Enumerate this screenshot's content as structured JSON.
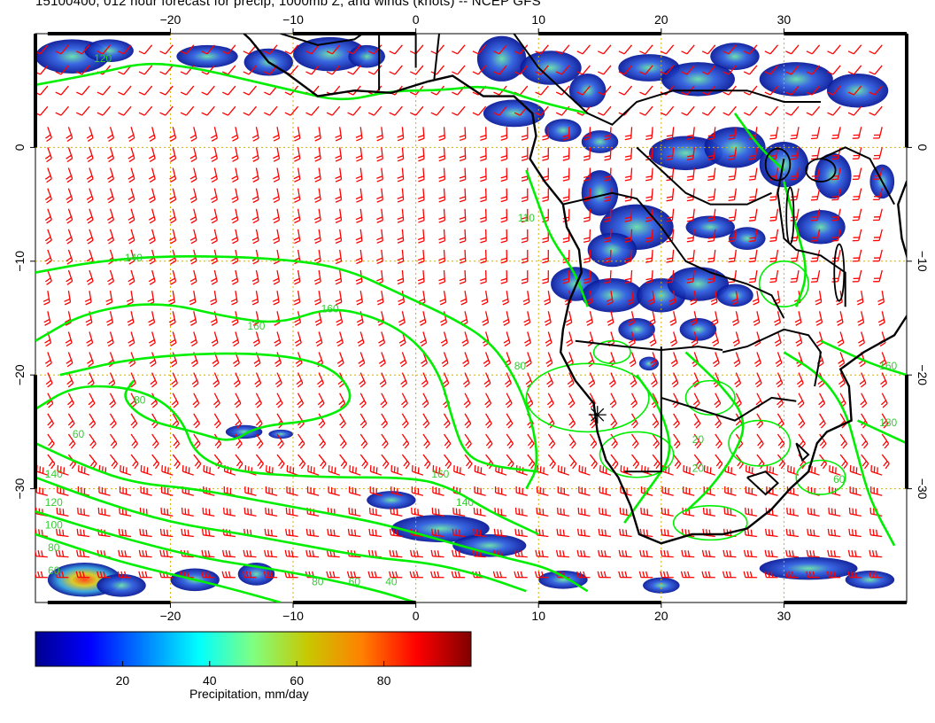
{
  "title": "15100400, 012 hour forecast for precip, 1000mb Z, and winds (knots) -- NCEP GFS",
  "map": {
    "lon_range": [
      -31,
      40
    ],
    "lat_range": [
      -40,
      10
    ],
    "lon_ticks": [
      -20,
      -10,
      0,
      10,
      20,
      30
    ],
    "lat_ticks": [
      -30,
      -20,
      -10,
      0
    ],
    "lon_tick_labels": [
      "−20",
      "−10",
      "0",
      "10",
      "20",
      "30"
    ],
    "lat_tick_labels": [
      "−30",
      "−20",
      "−10",
      "0"
    ],
    "grid": true,
    "contour_labels": [
      {
        "text": "120",
        "lon": -25.5,
        "lat": 7.5
      },
      {
        "text": "140",
        "lon": -23,
        "lat": -10
      },
      {
        "text": "160",
        "lon": -7,
        "lat": -14.5
      },
      {
        "text": "160",
        "lon": -13,
        "lat": -16
      },
      {
        "text": "80",
        "lon": -22.5,
        "lat": -22.5
      },
      {
        "text": "60",
        "lon": -27.5,
        "lat": -25.5
      },
      {
        "text": "140",
        "lon": -29.5,
        "lat": -29
      },
      {
        "text": "120",
        "lon": -29.5,
        "lat": -31.5
      },
      {
        "text": "100",
        "lon": -29.5,
        "lat": -33.5
      },
      {
        "text": "80",
        "lon": -29.5,
        "lat": -35.5
      },
      {
        "text": "60",
        "lon": -29.5,
        "lat": -37.5
      },
      {
        "text": "160",
        "lon": 2,
        "lat": -29
      },
      {
        "text": "140",
        "lon": 4,
        "lat": -31.5
      },
      {
        "text": "80",
        "lon": -8,
        "lat": -38.5
      },
      {
        "text": "60",
        "lon": -5,
        "lat": -38.5
      },
      {
        "text": "40",
        "lon": -2,
        "lat": -38.5
      },
      {
        "text": "110",
        "lon": 9,
        "lat": -6.5
      },
      {
        "text": "80",
        "lon": 8.5,
        "lat": -19.5
      },
      {
        "text": "160",
        "lon": 38.5,
        "lat": -19.5
      },
      {
        "text": "180",
        "lon": 38.5,
        "lat": -24.5
      },
      {
        "text": "20",
        "lon": 23,
        "lat": -26
      },
      {
        "text": "20",
        "lon": 23,
        "lat": -28.5
      },
      {
        "text": "60",
        "lon": 34.5,
        "lat": -29.5
      }
    ],
    "station_marker": {
      "lon": 14.8,
      "lat": -23.5
    }
  },
  "colorbar": {
    "label": "Precipitation, mm/day",
    "range": [
      0,
      100
    ],
    "ticks": [
      20,
      40,
      60,
      80
    ],
    "tick_labels": [
      "20",
      "40",
      "60",
      "80"
    ],
    "colors": [
      "#00008f",
      "#0000ff",
      "#0080ff",
      "#00ffff",
      "#80ff80",
      "#c8c800",
      "#ff8000",
      "#ff0000",
      "#800000"
    ]
  },
  "colors": {
    "contour": "#00ee00",
    "wind_barb": "#ff0000",
    "coastline": "#000000",
    "grid": "#d4b000"
  }
}
